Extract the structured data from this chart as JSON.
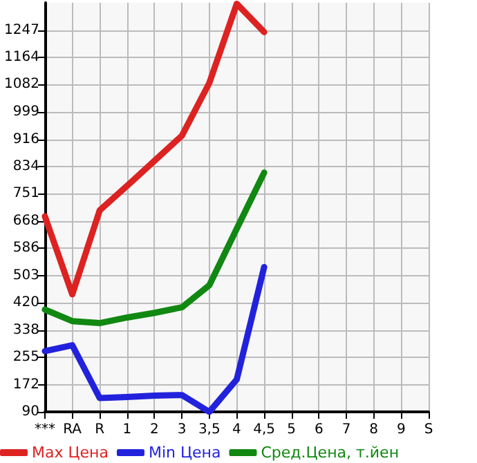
{
  "chart_data": {
    "type": "line",
    "categories": [
      "***",
      "RA",
      "R",
      "1",
      "2",
      "3",
      "3,5",
      "4",
      "4,5",
      "5",
      "6",
      "7",
      "8",
      "9",
      "S"
    ],
    "series": [
      {
        "name": "Max Цена",
        "color": "#dd2222",
        "values": [
          683,
          446,
          701,
          775,
          851,
          927,
          1087,
          1327,
          1241,
          null,
          null,
          null,
          null,
          null,
          null
        ]
      },
      {
        "name": "Min Цена",
        "color": "#2222dd",
        "values": [
          274,
          292,
          132,
          135,
          139,
          141,
          90,
          188,
          529,
          null,
          null,
          null,
          null,
          null,
          null
        ]
      },
      {
        "name": "Сред.Цена, т.йен",
        "color": "#118811",
        "values": [
          400,
          365,
          359,
          376,
          390,
          407,
          474,
          645,
          815,
          null,
          null,
          null,
          null,
          null,
          null
        ]
      }
    ],
    "ylim": [
      90,
      1330
    ],
    "yticks": [
      90,
      172,
      255,
      338,
      420,
      503,
      586,
      668,
      751,
      834,
      916,
      999,
      1082,
      1164,
      1247
    ],
    "grid": true,
    "legend": "bottom",
    "marker": "none",
    "line_style": "solid"
  }
}
